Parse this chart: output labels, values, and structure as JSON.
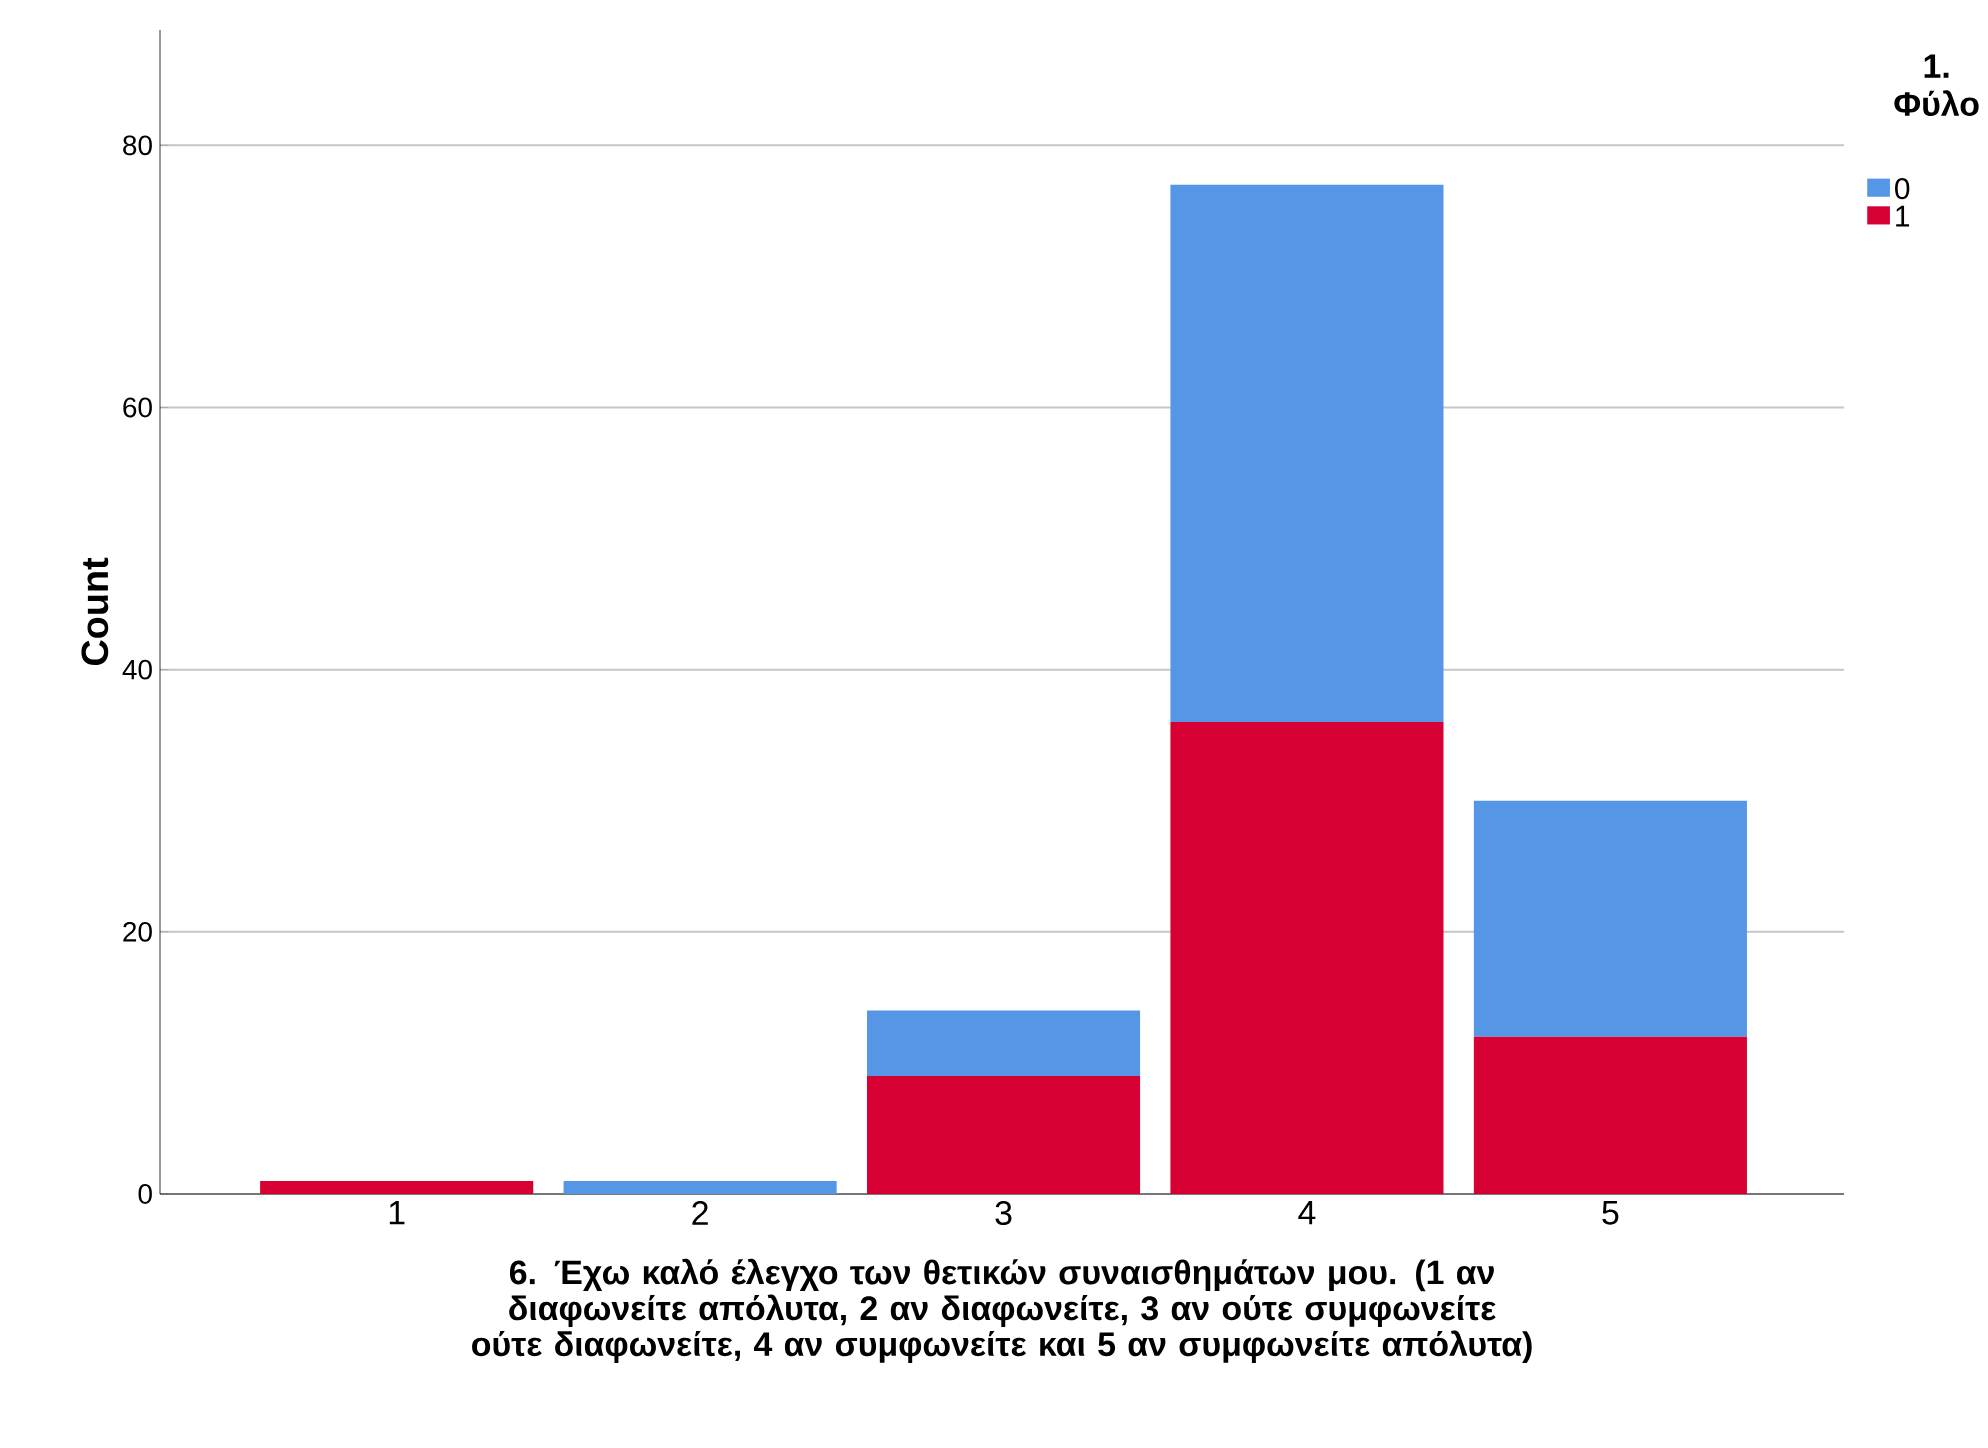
{
  "chart_data": {
    "type": "bar",
    "stacked": true,
    "xlabel": "6. Έχω καλό έλεγχο των  θετικών συναισθημάτων μου. (1 αν διαφωνείτε απόλυτα, 2 αν διαφωνείτε, 3 αν ούτε συμφωνείτε ούτε διαφωνείτε, 4 αν συμφωνείτε και 5 αν συμφωνείτε απόλυτα)",
    "ylabel": "Count",
    "legend_title": "1. Φύλο",
    "legend": "top right",
    "grid": "y",
    "categories": [
      "1",
      "2",
      "3",
      "4",
      "5"
    ],
    "series": [
      {
        "name": "1",
        "color": "#d60032",
        "values": [
          1,
          0,
          9,
          36,
          12
        ]
      },
      {
        "name": "0",
        "color": "#5596e6",
        "values": [
          0,
          1,
          5,
          41,
          18
        ]
      }
    ],
    "ylim": [
      0,
      88.8
    ],
    "yticks": [
      0,
      20,
      40,
      60,
      80
    ]
  }
}
